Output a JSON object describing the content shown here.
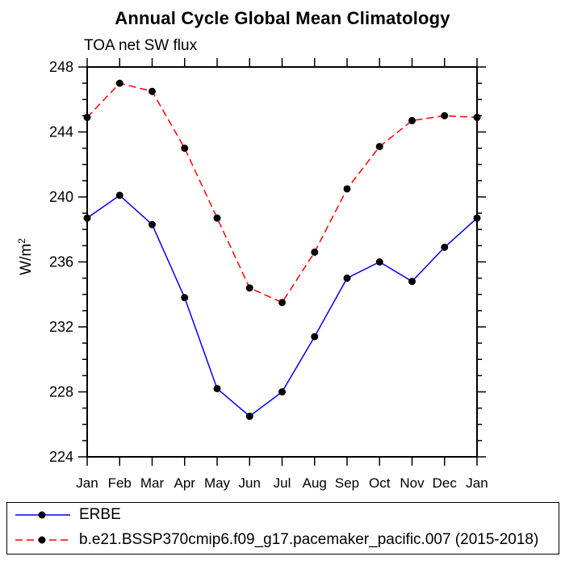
{
  "chart_data": {
    "type": "line",
    "title": "Annual Cycle Global Mean Climatology",
    "subtitle": "TOA net SW flux",
    "ylabel": "W/m²",
    "xlabel": "",
    "categories": [
      "Jan",
      "Feb",
      "Mar",
      "Apr",
      "May",
      "Jun",
      "Jul",
      "Aug",
      "Sep",
      "Oct",
      "Nov",
      "Dec",
      "Jan"
    ],
    "ylim": [
      224,
      248
    ],
    "ytick_major_step": 4,
    "ytick_minor_step": 1,
    "grid": false,
    "legend_position": "bottom-box",
    "frame_color": "#000000",
    "series": [
      {
        "name": "ERBE",
        "line_color": "#0000ff",
        "line_style": "solid",
        "marker": "filled-circle",
        "marker_color": "#000000",
        "values": [
          238.7,
          240.1,
          238.3,
          233.8,
          228.2,
          226.5,
          228.0,
          231.4,
          235.0,
          236.0,
          234.8,
          236.9,
          238.7
        ]
      },
      {
        "name": "b.e21.BSSP370cmip6.f09_g17.pacemaker_pacific.007 (2015-2018)",
        "line_color": "#ff0000",
        "line_style": "dashed",
        "marker": "filled-circle",
        "marker_color": "#000000",
        "values": [
          244.9,
          247.0,
          246.5,
          243.0,
          238.7,
          234.4,
          233.5,
          236.6,
          240.5,
          243.1,
          244.7,
          245.0,
          244.9
        ]
      }
    ]
  }
}
